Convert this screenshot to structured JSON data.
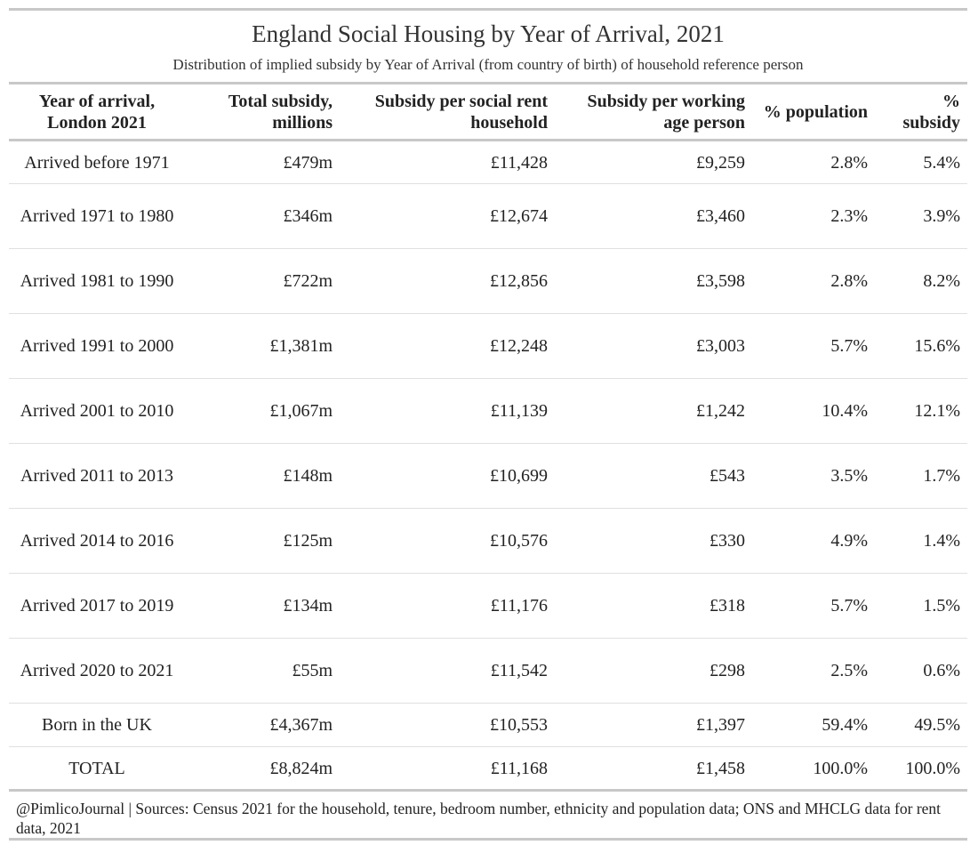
{
  "title": "England Social Housing by Year of Arrival, 2021",
  "subtitle": "Distribution of implied subsidy by Year of Arrival (from country of birth) of household reference person",
  "columns": [
    "Year of arrival, London 2021",
    "Total subsidy, millions",
    "Subsidy per social rent household",
    "Subsidy per working age person",
    "% population",
    "% subsidy"
  ],
  "rows": [
    {
      "label": "Arrived before 1971",
      "total": "£479m",
      "per_household": "£11,428",
      "per_person": "£9,259",
      "pct_population": "2.8%",
      "pct_subsidy": "5.4%"
    },
    {
      "label": "Arrived 1971 to 1980",
      "total": "£346m",
      "per_household": "£12,674",
      "per_person": "£3,460",
      "pct_population": "2.3%",
      "pct_subsidy": "3.9%"
    },
    {
      "label": "Arrived 1981 to 1990",
      "total": "£722m",
      "per_household": "£12,856",
      "per_person": "£3,598",
      "pct_population": "2.8%",
      "pct_subsidy": "8.2%"
    },
    {
      "label": "Arrived 1991 to 2000",
      "total": "£1,381m",
      "per_household": "£12,248",
      "per_person": "£3,003",
      "pct_population": "5.7%",
      "pct_subsidy": "15.6%"
    },
    {
      "label": "Arrived 2001 to 2010",
      "total": "£1,067m",
      "per_household": "£11,139",
      "per_person": "£1,242",
      "pct_population": "10.4%",
      "pct_subsidy": "12.1%"
    },
    {
      "label": "Arrived 2011 to 2013",
      "total": "£148m",
      "per_household": "£10,699",
      "per_person": "£543",
      "pct_population": "3.5%",
      "pct_subsidy": "1.7%"
    },
    {
      "label": "Arrived 2014 to 2016",
      "total": "£125m",
      "per_household": "£10,576",
      "per_person": "£330",
      "pct_population": "4.9%",
      "pct_subsidy": "1.4%"
    },
    {
      "label": "Arrived 2017 to 2019",
      "total": "£134m",
      "per_household": "£11,176",
      "per_person": "£318",
      "pct_population": "5.7%",
      "pct_subsidy": "1.5%"
    },
    {
      "label": "Arrived 2020 to 2021",
      "total": "£55m",
      "per_household": "£11,542",
      "per_person": "£298",
      "pct_population": "2.5%",
      "pct_subsidy": "0.6%"
    },
    {
      "label": "Born in the UK",
      "total": "£4,367m",
      "per_household": "£10,553",
      "per_person": "£1,397",
      "pct_population": "59.4%",
      "pct_subsidy": "49.5%"
    },
    {
      "label": "TOTAL",
      "total": "£8,824m",
      "per_household": "£11,168",
      "per_person": "£1,458",
      "pct_population": "100.0%",
      "pct_subsidy": "100.0%"
    }
  ],
  "footer": "@PimlicoJournal | Sources: Census 2021 for the household, tenure, bedroom number, ethnicity and population data; ONS and MHCLG data for rent data, 2021"
}
